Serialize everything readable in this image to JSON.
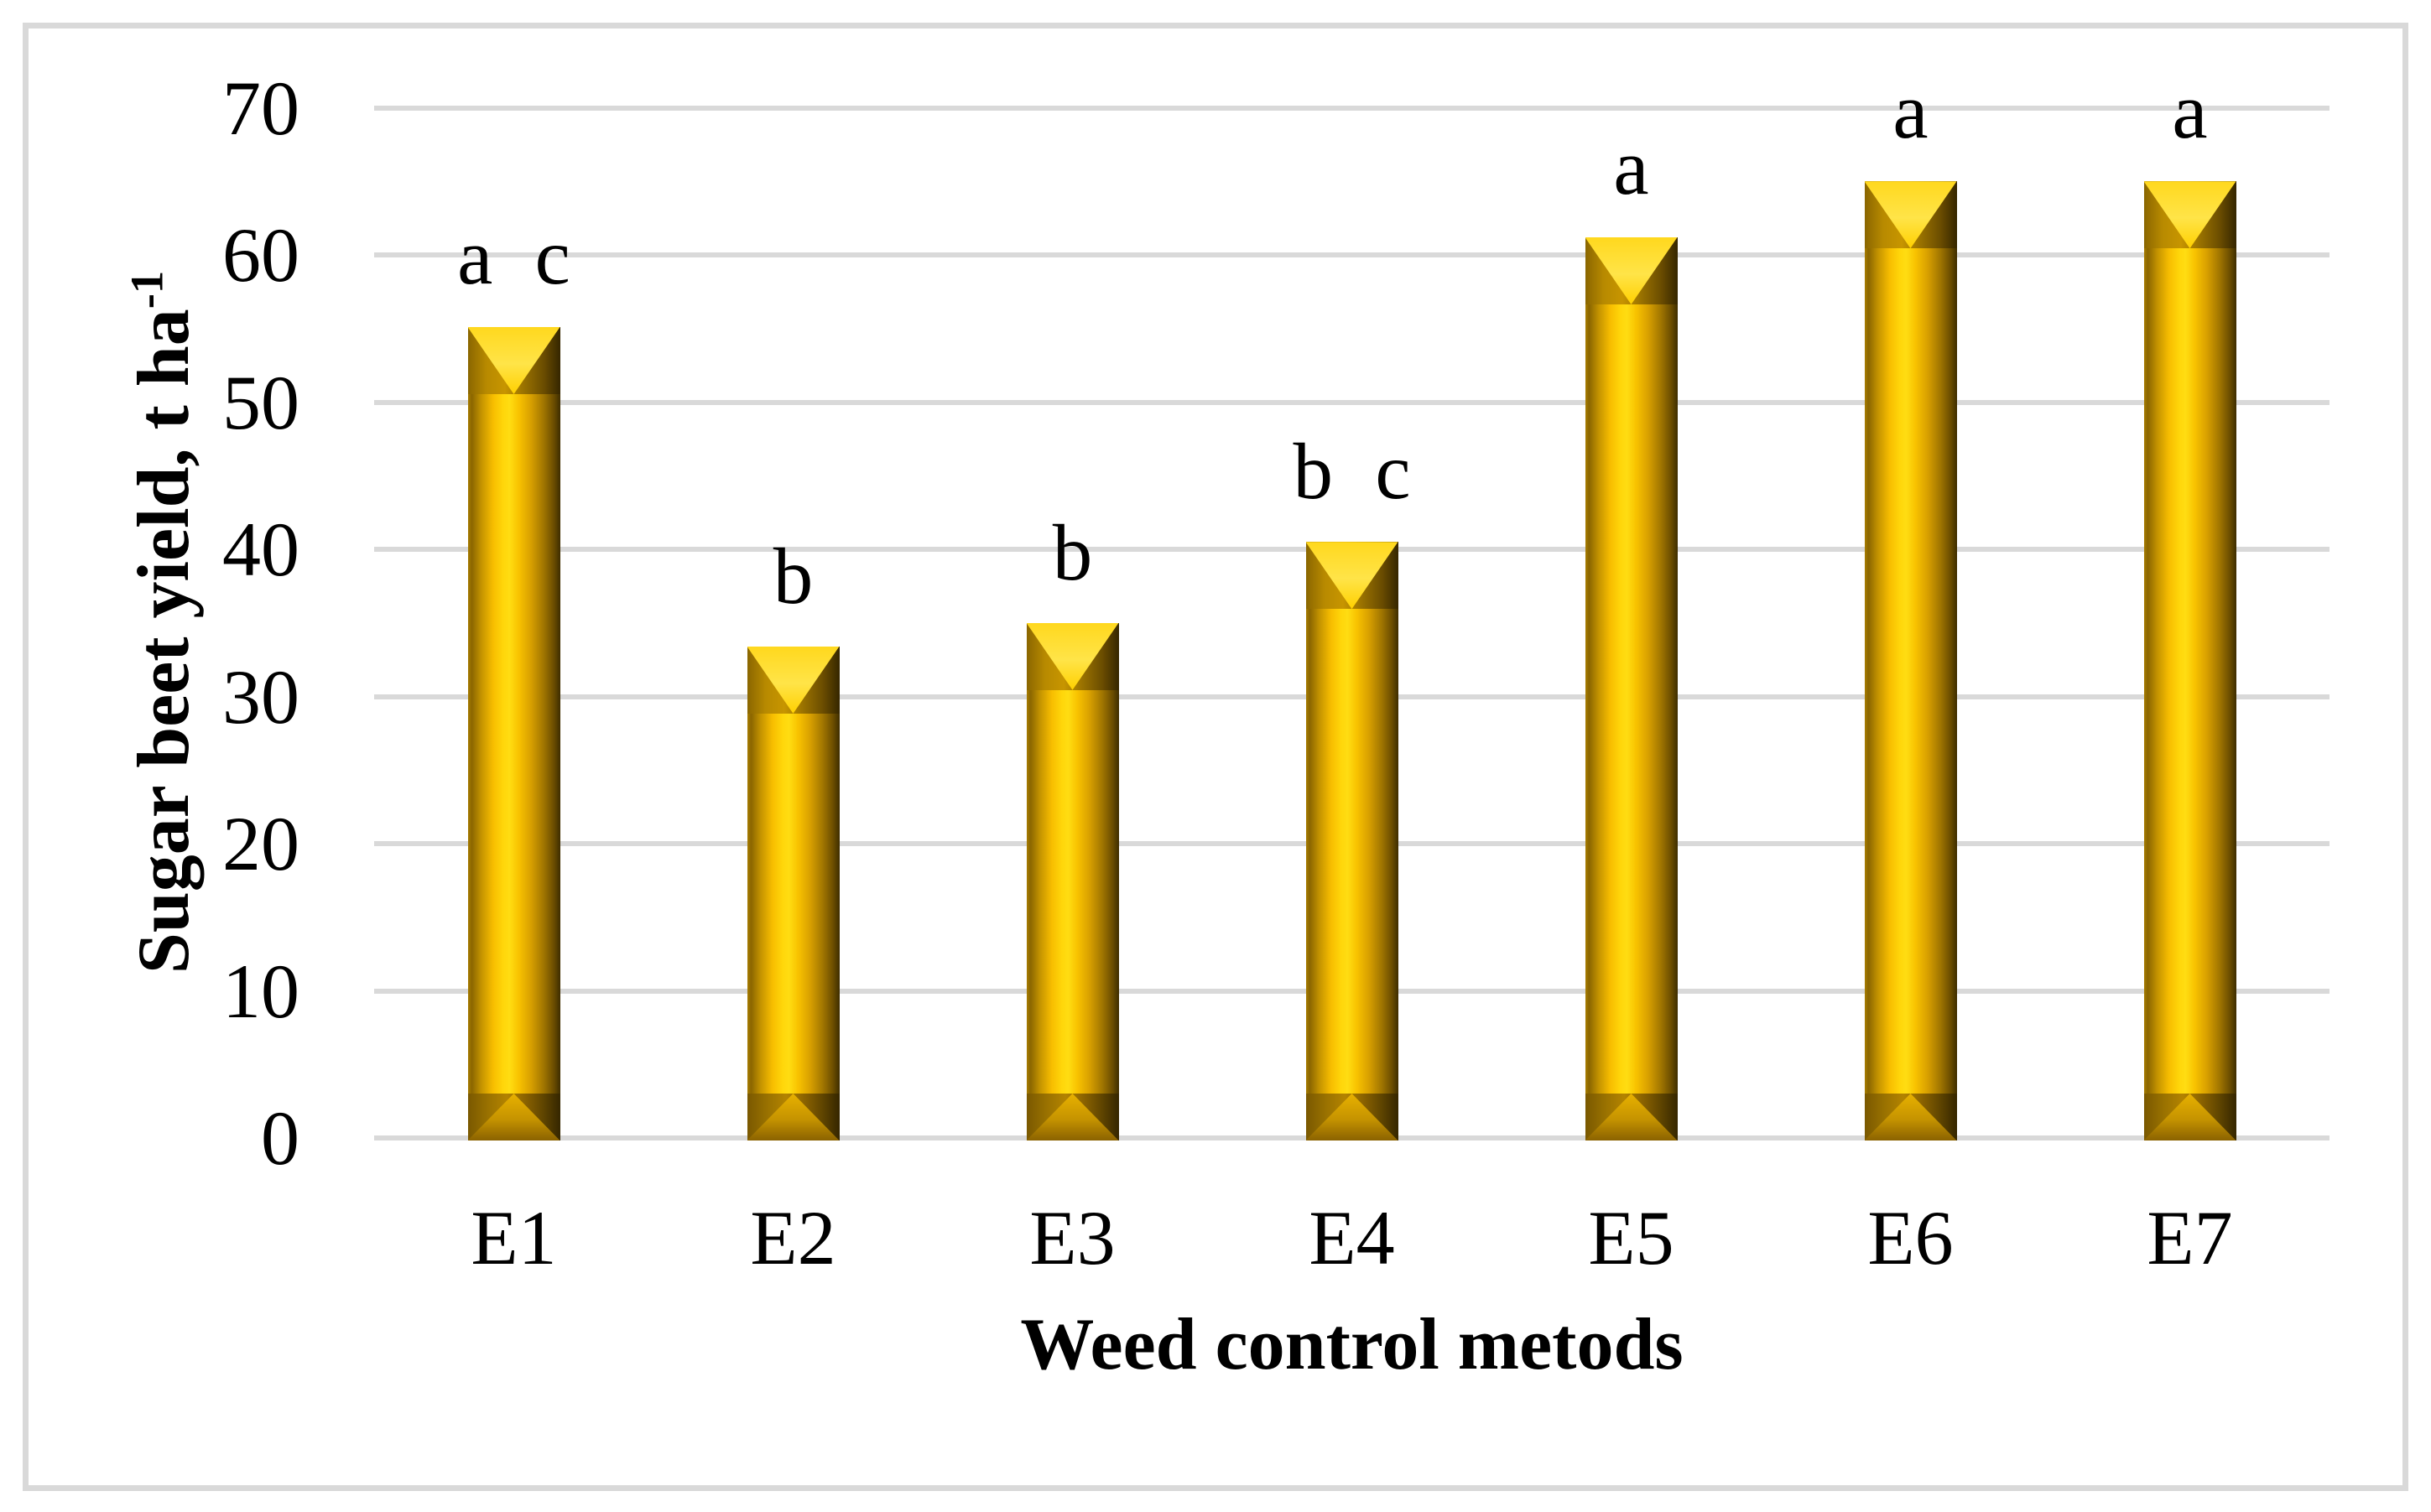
{
  "chart_data": {
    "type": "bar",
    "title": "",
    "categories": [
      "E1",
      "E2",
      "E3",
      "E4",
      "E5",
      "E6",
      "E7"
    ],
    "values": [
      55.1,
      33.4,
      35.0,
      40.5,
      61.2,
      65.0,
      65.0
    ],
    "sig_letters": [
      "a c",
      "b",
      "b",
      "b c",
      "a",
      "a",
      "a"
    ],
    "xlabel": "Weed control metods",
    "ylabel_main": "Sugar beet yield, t ha",
    "ylabel_sup": "-1",
    "ylim": [
      0,
      70
    ],
    "yticks": [
      0,
      10,
      20,
      30,
      40,
      50,
      60,
      70
    ],
    "grid": "horizontal-gridlines-on",
    "legend": "none",
    "colors": {
      "bar_main": "#FFD60A",
      "bar_shadow": "#6B4D00",
      "bar_highlight": "#FFE448",
      "gridline": "#D9D9D9",
      "frame_border": "#D9D9D9",
      "text": "#000000",
      "background": "#FFFFFF"
    }
  }
}
